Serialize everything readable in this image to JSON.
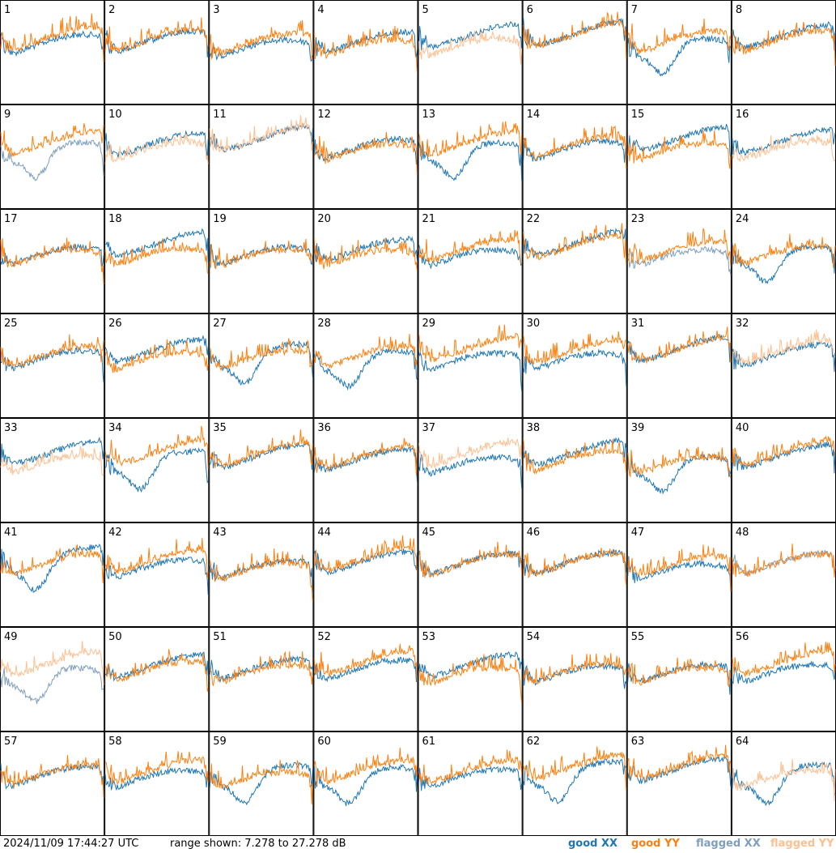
{
  "footer": {
    "timestamp": "2024/11/09 17:44:27 UTC",
    "range_text": "range shown: 7.278 to 27.278 dB"
  },
  "legend": [
    {
      "label": "good XX",
      "color": "#1f77b4"
    },
    {
      "label": "good YY",
      "color": "#ff7f0e"
    },
    {
      "label": "flagged XX",
      "color": "#7f9fbf"
    },
    {
      "label": "flagged YY",
      "color": "#ffbf8f"
    }
  ],
  "chart_data": {
    "type": "line",
    "layout": "8x8 small-multiples grid",
    "y_range_db": [
      7.278,
      27.278
    ],
    "panels": [
      {
        "id": "1",
        "xx": "good",
        "yy": "good"
      },
      {
        "id": "2",
        "xx": "good",
        "yy": "good"
      },
      {
        "id": "3",
        "xx": "good",
        "yy": "good"
      },
      {
        "id": "4",
        "xx": "good",
        "yy": "good"
      },
      {
        "id": "5",
        "xx": "good",
        "yy": "flagged"
      },
      {
        "id": "6",
        "xx": "good",
        "yy": "good"
      },
      {
        "id": "7",
        "xx": "good",
        "yy": "good"
      },
      {
        "id": "8",
        "xx": "good",
        "yy": "good"
      },
      {
        "id": "9",
        "xx": "flagged",
        "yy": "good"
      },
      {
        "id": "10",
        "xx": "good",
        "yy": "flagged"
      },
      {
        "id": "11",
        "xx": "good",
        "yy": "flagged"
      },
      {
        "id": "12",
        "xx": "good",
        "yy": "good"
      },
      {
        "id": "13",
        "xx": "good",
        "yy": "good"
      },
      {
        "id": "14",
        "xx": "good",
        "yy": "good"
      },
      {
        "id": "15",
        "xx": "good",
        "yy": "good"
      },
      {
        "id": "16",
        "xx": "good",
        "yy": "flagged"
      },
      {
        "id": "17",
        "xx": "good",
        "yy": "good"
      },
      {
        "id": "18",
        "xx": "good",
        "yy": "good"
      },
      {
        "id": "19",
        "xx": "good",
        "yy": "good"
      },
      {
        "id": "20",
        "xx": "good",
        "yy": "good"
      },
      {
        "id": "21",
        "xx": "good",
        "yy": "good"
      },
      {
        "id": "22",
        "xx": "good",
        "yy": "good"
      },
      {
        "id": "23",
        "xx": "flagged",
        "yy": "good"
      },
      {
        "id": "24",
        "xx": "good",
        "yy": "good"
      },
      {
        "id": "25",
        "xx": "good",
        "yy": "good"
      },
      {
        "id": "26",
        "xx": "good",
        "yy": "good"
      },
      {
        "id": "27",
        "xx": "good",
        "yy": "good"
      },
      {
        "id": "28",
        "xx": "good",
        "yy": "good"
      },
      {
        "id": "29",
        "xx": "good",
        "yy": "good"
      },
      {
        "id": "30",
        "xx": "good",
        "yy": "good"
      },
      {
        "id": "31",
        "xx": "good",
        "yy": "good"
      },
      {
        "id": "32",
        "xx": "good",
        "yy": "flagged"
      },
      {
        "id": "33",
        "xx": "good",
        "yy": "flagged"
      },
      {
        "id": "34",
        "xx": "good",
        "yy": "good"
      },
      {
        "id": "35",
        "xx": "good",
        "yy": "good"
      },
      {
        "id": "36",
        "xx": "good",
        "yy": "good"
      },
      {
        "id": "37",
        "xx": "good",
        "yy": "flagged"
      },
      {
        "id": "38",
        "xx": "good",
        "yy": "good"
      },
      {
        "id": "39",
        "xx": "good",
        "yy": "good"
      },
      {
        "id": "40",
        "xx": "good",
        "yy": "good"
      },
      {
        "id": "41",
        "xx": "good",
        "yy": "good"
      },
      {
        "id": "42",
        "xx": "good",
        "yy": "good"
      },
      {
        "id": "43",
        "xx": "good",
        "yy": "good"
      },
      {
        "id": "44",
        "xx": "good",
        "yy": "good"
      },
      {
        "id": "45",
        "xx": "good",
        "yy": "good"
      },
      {
        "id": "46",
        "xx": "good",
        "yy": "good"
      },
      {
        "id": "47",
        "xx": "good",
        "yy": "good"
      },
      {
        "id": "48",
        "xx": "flagged",
        "yy": "good"
      },
      {
        "id": "49",
        "xx": "flagged",
        "yy": "flagged"
      },
      {
        "id": "50",
        "xx": "good",
        "yy": "good"
      },
      {
        "id": "51",
        "xx": "good",
        "yy": "good"
      },
      {
        "id": "52",
        "xx": "good",
        "yy": "good"
      },
      {
        "id": "53",
        "xx": "good",
        "yy": "good"
      },
      {
        "id": "54",
        "xx": "good",
        "yy": "good"
      },
      {
        "id": "55",
        "xx": "good",
        "yy": "good"
      },
      {
        "id": "56",
        "xx": "good",
        "yy": "good"
      },
      {
        "id": "57",
        "xx": "good",
        "yy": "good"
      },
      {
        "id": "58",
        "xx": "good",
        "yy": "good"
      },
      {
        "id": "59",
        "xx": "good",
        "yy": "good"
      },
      {
        "id": "60",
        "xx": "good",
        "yy": "good"
      },
      {
        "id": "61",
        "xx": "good",
        "yy": "good"
      },
      {
        "id": "62",
        "xx": "good",
        "yy": "good"
      },
      {
        "id": "63",
        "xx": "good",
        "yy": "good"
      },
      {
        "id": "64",
        "xx": "good",
        "yy": "flagged"
      }
    ]
  }
}
